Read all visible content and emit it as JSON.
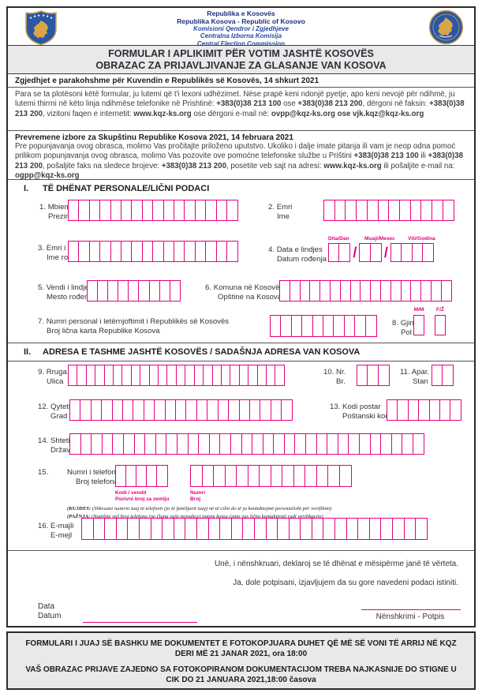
{
  "colors": {
    "magenta": "#e6007e",
    "navy": "#1e2f7a",
    "gray_bg": "#e9e9e9"
  },
  "header": {
    "org_lines": [
      "Republika e Kosovës",
      "Republika Kosova - Republic of Kosovo",
      "Komisioni Qendror i Zgjedhjeve",
      "Centralna Izborna Komisija",
      "Central Election Commission"
    ],
    "title_line1": "FORMULAR I APLIKIMIT PËR VOTIM JASHTË KOSOVËS",
    "title_line2": "OBRAZAC ZA PRIJAVLJIVANJE ZA GLASANJE VAN KOSOVA"
  },
  "instructions": {
    "al_heading": "Zgjedhjet e parakohshme për Kuvendin e Republikës së Kosovës, 14 shkurt 2021",
    "al_paragraph": [
      {
        "t": "Para se ta plotësoni këtë formular, ju lutemi që t'i lexoni udhëzimet. Nëse prapë keni ndonjë pyetje, apo keni nevojë për ndihmë, ju lutemi thirrni në këto linja ndihmëse telefonike në Prishtinë: "
      },
      {
        "t": "+383(0)38 213 100",
        "b": 1
      },
      {
        "t": " ose "
      },
      {
        "t": "+383(0)38 213 200",
        "b": 1
      },
      {
        "t": ", dërgoni në faksin: "
      },
      {
        "t": "+383(0)38 213 200",
        "b": 1
      },
      {
        "t": ", vizitoni faqen e internetit: "
      },
      {
        "t": "www.kqz-ks.org",
        "b": 1
      },
      {
        "t": " ose dërgoni e-mail në: "
      },
      {
        "t": "ovpp@kqz-ks.org ose vjk.kqz@kqz-ks.org",
        "b": 1
      }
    ],
    "sr_heading": "Prevremene izbore za Skupštinu Republike Kosova 2021, 14 februara 2021",
    "sr_paragraph": [
      {
        "t": "Pre popunjavanja ovog obrasca, molimo Vas pročitajte priloženo uputstvo. Ukoliko i dalje imate pitanja ili vam je neop odna pomoć prilikom popunjavanja ovog obrasca, molimo Vas pozovite ove pomoćne telefonske službe u Prištini "
      },
      {
        "t": "+383(0)38 213 100",
        "b": 1
      },
      {
        "t": " ili "
      },
      {
        "t": "+383(0)38 213 200",
        "b": 1
      },
      {
        "t": ", pošaljite faks na sledece brojeve: "
      },
      {
        "t": "+383(0)38 213 200",
        "b": 1
      },
      {
        "t": ", posetite veb sajt na adresi: "
      },
      {
        "t": "www.kqz-ks.org",
        "b": 1
      },
      {
        "t": " ili pošaljite e-mail na: "
      },
      {
        "t": "ogpp@kqz-ks.org",
        "b": 1
      }
    ]
  },
  "sections": {
    "s1": {
      "no": "I.",
      "title": "TË DHËNAT PERSONALE/LIČNI PODACI"
    },
    "s2": {
      "no": "II.",
      "title": "ADRESA E TASHME JASHTË KOSOVËS / SADAŠNJA ADRESA VAN KOSOVA"
    }
  },
  "fields": {
    "f1": {
      "no": "1.",
      "al": "Mbiemri",
      "sr": "Prezime",
      "boxes": 16
    },
    "f2": {
      "no": "2.",
      "al": "Emri",
      "sr": "Ime",
      "boxes": 12
    },
    "f3": {
      "no": "3.",
      "al": "Emri i prindit",
      "sr": "Ime roditelja",
      "boxes": 16
    },
    "f4": {
      "no": "4.",
      "al": "Data e lindjes",
      "sr": "Datum rođenja",
      "sublabels": [
        "Dita/Dan",
        "Muaji/Mesec",
        "Viti/Godina"
      ],
      "groups": [
        2,
        2,
        4
      ],
      "separator": "/"
    },
    "f5": {
      "no": "5.",
      "al": "Vendi i lindjes",
      "sr": "Mesto rođena",
      "boxes": 9
    },
    "f6": {
      "no": "6.",
      "al": "Komuna në Kosovë",
      "sr": "Opštine na Kosova",
      "boxes": 17
    },
    "f7": {
      "no": "7.",
      "al": "Numri personal i letërnjoftimit i Republikës së Kosovës",
      "sr": "Broj lična karta Republike Kosova",
      "boxes": 10
    },
    "f8": {
      "no": "8.",
      "al": "Gjinia",
      "sr": "Pol",
      "options": [
        "M/M",
        "F/Ž"
      ]
    },
    "f9": {
      "no": "9.",
      "al": "Rruga",
      "sr": "Ulica",
      "boxes": 24
    },
    "f10": {
      "no": "10.",
      "al": "Nr.",
      "sr": "Br.",
      "boxes": 3
    },
    "f11": {
      "no": "11.",
      "al": "Apar.",
      "sr": "Stan",
      "boxes": 2
    },
    "f12": {
      "no": "12.",
      "al": "Qyteti",
      "sr": "Grad",
      "boxes": 21
    },
    "f13": {
      "no": "13.",
      "al": "Kodi postar",
      "sr": "Poštanski kod",
      "boxes": 7
    },
    "f14": {
      "no": "14.",
      "al": "Shteti",
      "sr": "Država",
      "boxes": 33
    },
    "f15": {
      "no": "15.",
      "al": "Numri i telefonit",
      "sr": "Broj  telefona",
      "groups": [
        {
          "boxes": 5,
          "label_al": "Kodi i vendit",
          "label_sr": "Pozivni broj za zemlju"
        },
        {
          "boxes": 14,
          "label_al": "Numri",
          "label_sr": "Broj"
        }
      ],
      "note_al": [
        {
          "t": "(KUJDES:",
          "b": 1
        },
        {
          "t": "  (Shkruani numrin tuaj të telefonit (jo të familjarit tuaj) në të cilin do të ju kontaktojmë personalisht për verifikim)"
        }
      ],
      "note_sr": [
        {
          "t": "(PAŽNJA:",
          "b": 1
        },
        {
          "t": " (Napišite vaš broj telefona (ne člana vaše porodice) putem kojeg ćemo vas lično kontaktirati radi verifikacije)"
        }
      ]
    },
    "f16": {
      "no": "16.",
      "al": "E-majli",
      "sr": "E-mejl",
      "boxes": 30
    }
  },
  "declaration": {
    "al": "Unë, i nënshkruari, deklaroj se të dhënat e mësipërme janë të vërteta.",
    "sr": "Ja, dole potpisani, izjavljujem da su gore navedeni podaci istiniti."
  },
  "signature_block": {
    "date_al": "Data",
    "date_sr": "Datum",
    "signature_label": "Nënshkrimi - Potpis"
  },
  "footer": {
    "al": "FORMULARI I JUAJ SË BASHKU ME DOKUMENTET E FOTOKOPJUARA DUHET QË MË SË VONI TË ARRIJ NË KQZ DERI MË 21 JANAR 2021, ora 18:00",
    "sr": "VAŠ OBRAZAC PRIJAVE ZAJEDNO SA FOTOKOPIRANOM DOKUMENTACIJOM TREBA NAJKASNIJE DO STIGNE U CIK DO 21 JANUARA 2021,18:00 časova"
  }
}
